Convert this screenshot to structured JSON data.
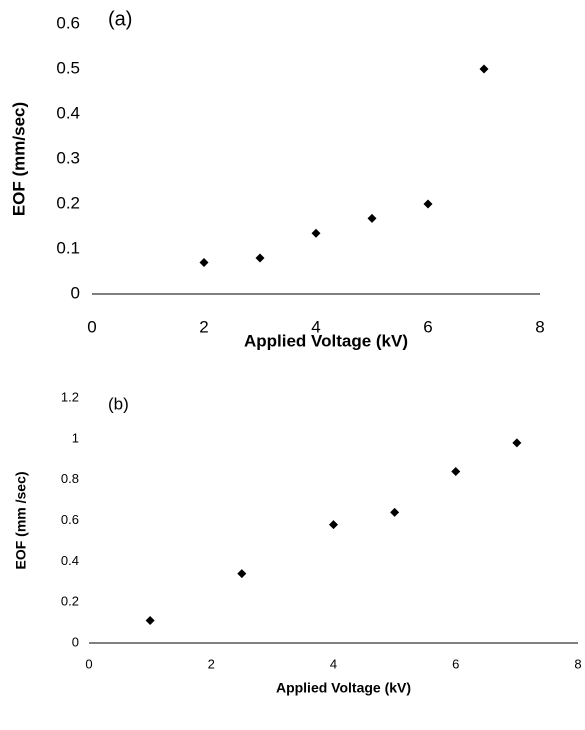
{
  "chart_data": [
    {
      "type": "scatter",
      "annotation": "(a)",
      "x_label": "Applied Voltage (kV)",
      "y_label": "EOF (mm/sec)",
      "x": [
        2,
        3,
        4,
        5,
        6,
        7
      ],
      "values": [
        0.07,
        0.08,
        0.135,
        0.168,
        0.2,
        0.5
      ],
      "color": "#000000",
      "xlim": [
        0,
        8
      ],
      "xticks": [
        0,
        2,
        4,
        6,
        8
      ],
      "ylim": [
        0,
        0.6
      ],
      "yticks": [
        0,
        0.1,
        0.2,
        0.3,
        0.4,
        0.5,
        0.6
      ]
    },
    {
      "type": "scatter",
      "annotation": "(b)",
      "x_label": "Applied Voltage (kV)",
      "y_label": "EOF (mm /sec)",
      "x": [
        1,
        2.5,
        4,
        5,
        6,
        7
      ],
      "values": [
        0.11,
        0.34,
        0.58,
        0.64,
        0.84,
        0.98
      ],
      "color": "#000000",
      "xlim": [
        0,
        8
      ],
      "xticks": [
        0,
        2,
        4,
        6,
        8
      ],
      "ylim": [
        0,
        1.2
      ],
      "yticks": [
        0,
        0.2,
        0.4,
        0.6,
        0.8,
        1,
        1.2
      ]
    }
  ]
}
